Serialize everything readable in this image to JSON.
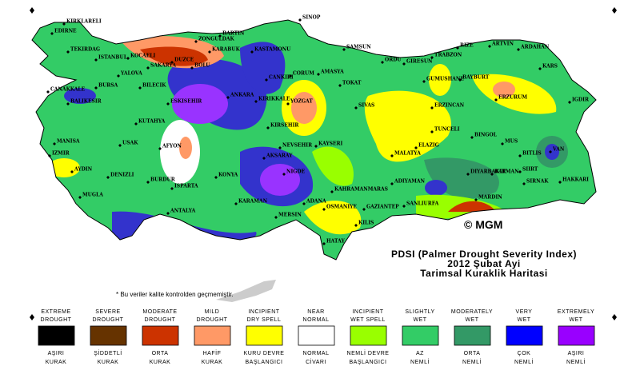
{
  "title_lines": [
    "PDSI (Palmer Drought Severity Index)",
    "2012 Şubat Ayi",
    "Tarimsal Kuraklik Haritasi"
  ],
  "credit": "© MGM",
  "note": "* Bu veriler kalite kontrolden geçmemiştir.",
  "cities": [
    "KIRKLARELI",
    "EDIRNE",
    "TEKIRDAG",
    "ISTANBUL",
    "KOCAELI",
    "SAKARYA",
    "DUZCE",
    "BOLU",
    "ZONGULDAK",
    "BARTIN",
    "KARABUK",
    "KASTAMONU",
    "SINOP",
    "SAMSUN",
    "ORDU",
    "GIRESUN",
    "TRABZON",
    "RIZE",
    "ARTVIN",
    "ARDAHAN",
    "KARS",
    "IGDIR",
    "ERZURUM",
    "BAYBURT",
    "GUMUSHANE",
    "ERZINCAN",
    "TUNCELI",
    "BINGOL",
    "MUS",
    "BITLIS",
    "VAN",
    "SIIRT",
    "SIRNAK",
    "HAKKARI",
    "BATMAN",
    "MARDIN",
    "DIYARBAKIR",
    "SANLIURFA",
    "ADIYAMAN",
    "MALATYA",
    "ELAZIG",
    "KAHRAMANMARAS",
    "GAZIANTEP",
    "KILIS",
    "OSMANIYE",
    "HATAY",
    "ADANA",
    "MERSIN",
    "KARAMAN",
    "NIGDE",
    "AKSARAY",
    "NEVSEHIR",
    "KAYSERI",
    "SIVAS",
    "TOKAT",
    "AMASYA",
    "CORUM",
    "YOZGAT",
    "KIRSEHIR",
    "KIRIKKALE",
    "ANKARA",
    "CANKIRI",
    "ESKISEHIR",
    "BILECIK",
    "YALOVA",
    "BURSA",
    "CANAKKALE",
    "BALIKESIR",
    "KUTAHYA",
    "MANISA",
    "IZMIR",
    "AYDIN",
    "MUGLA",
    "DENIZLI",
    "USAK",
    "AFYON",
    "BURDUR",
    "ISPARTA",
    "ANTALYA",
    "KONYA"
  ],
  "legend": [
    {
      "en": [
        "EXTREME",
        "DROUGHT"
      ],
      "tr": [
        "AŞIRI",
        "KURAK"
      ],
      "color": "#000000"
    },
    {
      "en": [
        "SEVERE",
        "DROUGHT"
      ],
      "tr": [
        "ŞİDDETLİ",
        "KURAK"
      ],
      "color": "#663300"
    },
    {
      "en": [
        "MODERATE",
        "DROUGHT"
      ],
      "tr": [
        "ORTA",
        "KURAK"
      ],
      "color": "#cc3300"
    },
    {
      "en": [
        "MILD",
        "DROUGHT"
      ],
      "tr": [
        "HAFİF",
        "KURAK"
      ],
      "color": "#ff9966"
    },
    {
      "en": [
        "INCIPIENT",
        "DRY SPELL"
      ],
      "tr": [
        "KURU DEVRE",
        "BAŞLANGICI"
      ],
      "color": "#ffff00"
    },
    {
      "en": [
        "NEAR",
        "NORMAL"
      ],
      "tr": [
        "NORMAL",
        "CİVARI"
      ],
      "color": "#ffffff"
    },
    {
      "en": [
        "INCIPIENT",
        "WET SPELL"
      ],
      "tr": [
        "NEMLİ DEVRE",
        "BAŞLANGICI"
      ],
      "color": "#99ff00"
    },
    {
      "en": [
        "SLIGHTLY",
        "WET"
      ],
      "tr": [
        "AZ",
        "NEMLİ"
      ],
      "color": "#33cc66"
    },
    {
      "en": [
        "MODERATELY",
        "WET"
      ],
      "tr": [
        "ORTA",
        "NEMLİ"
      ],
      "color": "#339966"
    },
    {
      "en": [
        "VERY",
        "WET"
      ],
      "tr": [
        "ÇOK",
        "NEMLİ"
      ],
      "color": "#0000ff"
    },
    {
      "en": [
        "EXTREMELY",
        "WET"
      ],
      "tr": [
        "AŞIRI",
        "NEMLİ"
      ],
      "color": "#9900ff"
    }
  ]
}
